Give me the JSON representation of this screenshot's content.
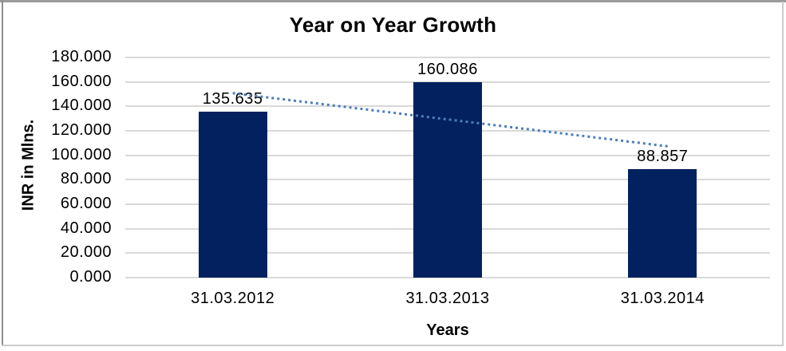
{
  "chart_data": {
    "type": "bar",
    "title": "Year on Year Growth",
    "xlabel": "Years",
    "ylabel": "INR in Mlns.",
    "categories": [
      "31.03.2012",
      "31.03.2013",
      "31.03.2014"
    ],
    "values": [
      135.635,
      160.086,
      88.857
    ],
    "data_labels": [
      "135.635",
      "160.086",
      "88.857"
    ],
    "ylim": [
      0,
      180
    ],
    "ytick_step": 20,
    "ytick_labels": [
      "0.000",
      "20.000",
      "40.000",
      "60.000",
      "80.000",
      "100.000",
      "120.000",
      "140.000",
      "160.000",
      "180.000"
    ],
    "grid": true,
    "legend_position": "none",
    "bar_color": "#03215e",
    "gridline_color": "#d9d9d9",
    "text_color": "#000000",
    "trendline": {
      "type": "linear",
      "style": "dotted",
      "color": "#4a7ebb",
      "start_category_index": 0,
      "end_category_index": 2,
      "start_value": 150.8,
      "end_value": 107.7
    }
  }
}
